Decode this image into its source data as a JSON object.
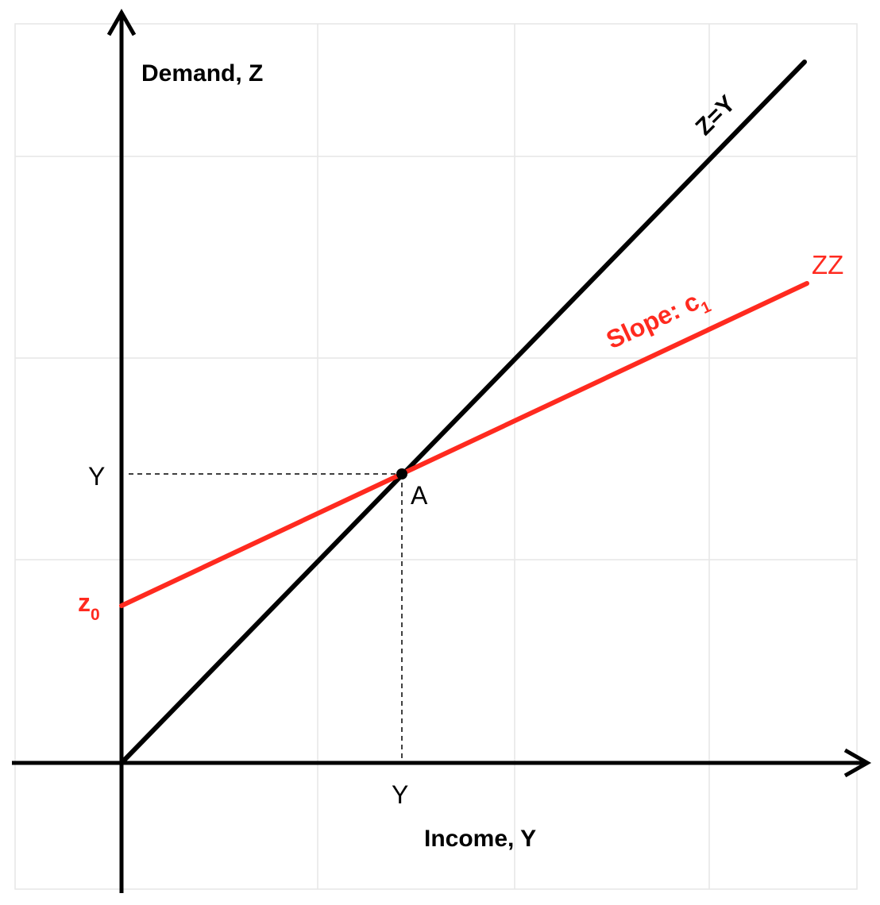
{
  "colors": {
    "axis": "#000000",
    "identity_line": "#000000",
    "demand_line": "#ff2a1f",
    "grid": "#e6e6e6",
    "guide": "#000000"
  },
  "labels": {
    "y_axis": "Demand, Z",
    "x_axis": "Income, Y",
    "identity_line": "Z=Y",
    "demand_line": "ZZ",
    "slope_prefix": "Slope: c",
    "slope_sub": "1",
    "intercept_main": "z",
    "intercept_sub": "0",
    "equilibrium_point": "A",
    "y_tick": "Y",
    "x_tick": "Y"
  }
}
